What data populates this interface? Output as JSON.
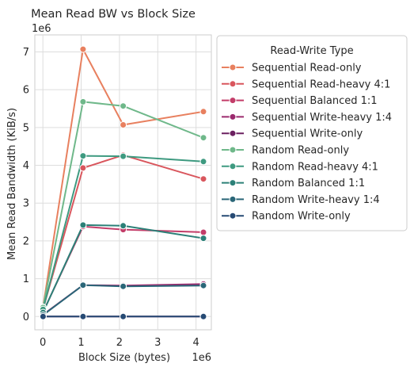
{
  "chart_data": {
    "type": "line",
    "title": "Mean Read BW vs Block Size",
    "xlabel": "Block Size (bytes)",
    "ylabel": "Mean Read Bandwidth (KiB/s)",
    "x_offset_label": "1e6",
    "y_offset_label": "1e6",
    "xlim": [
      -0.21,
      4.4
    ],
    "ylim": [
      -0.35,
      7.45
    ],
    "xticks": [
      0,
      1,
      2,
      3,
      4
    ],
    "yticks": [
      0,
      1,
      2,
      3,
      4,
      5,
      6,
      7
    ],
    "grid": true,
    "legend": {
      "title": "Read-Write Type",
      "placement": "outside-right"
    },
    "x": [
      4096,
      1048576,
      2097152,
      4194304
    ],
    "series": [
      {
        "name": "Sequential Read-only",
        "color": "#e8805f",
        "values": [
          250000,
          7070000,
          5070000,
          5420000
        ]
      },
      {
        "name": "Sequential Read-heavy 4:1",
        "color": "#d9565d",
        "values": [
          200000,
          3930000,
          4270000,
          3640000
        ]
      },
      {
        "name": "Sequential Balanced 1:1",
        "color": "#c33d69",
        "values": [
          120000,
          2380000,
          2300000,
          2230000
        ]
      },
      {
        "name": "Sequential Write-heavy 1:4",
        "color": "#9b2a6e",
        "values": [
          50000,
          830000,
          820000,
          860000
        ]
      },
      {
        "name": "Sequential Write-only",
        "color": "#6b2060",
        "values": [
          0,
          0,
          0,
          0
        ]
      },
      {
        "name": "Random Read-only",
        "color": "#6fb88a",
        "values": [
          240000,
          5680000,
          5570000,
          4730000
        ]
      },
      {
        "name": "Random Read-heavy 4:1",
        "color": "#3e9a80",
        "values": [
          190000,
          4250000,
          4240000,
          4100000
        ]
      },
      {
        "name": "Random Balanced 1:1",
        "color": "#2c8078",
        "values": [
          110000,
          2420000,
          2400000,
          2070000
        ]
      },
      {
        "name": "Random Write-heavy 1:4",
        "color": "#2a6678",
        "values": [
          40000,
          830000,
          800000,
          820000
        ]
      },
      {
        "name": "Random Write-only",
        "color": "#264a74",
        "values": [
          0,
          0,
          0,
          0
        ]
      }
    ]
  }
}
